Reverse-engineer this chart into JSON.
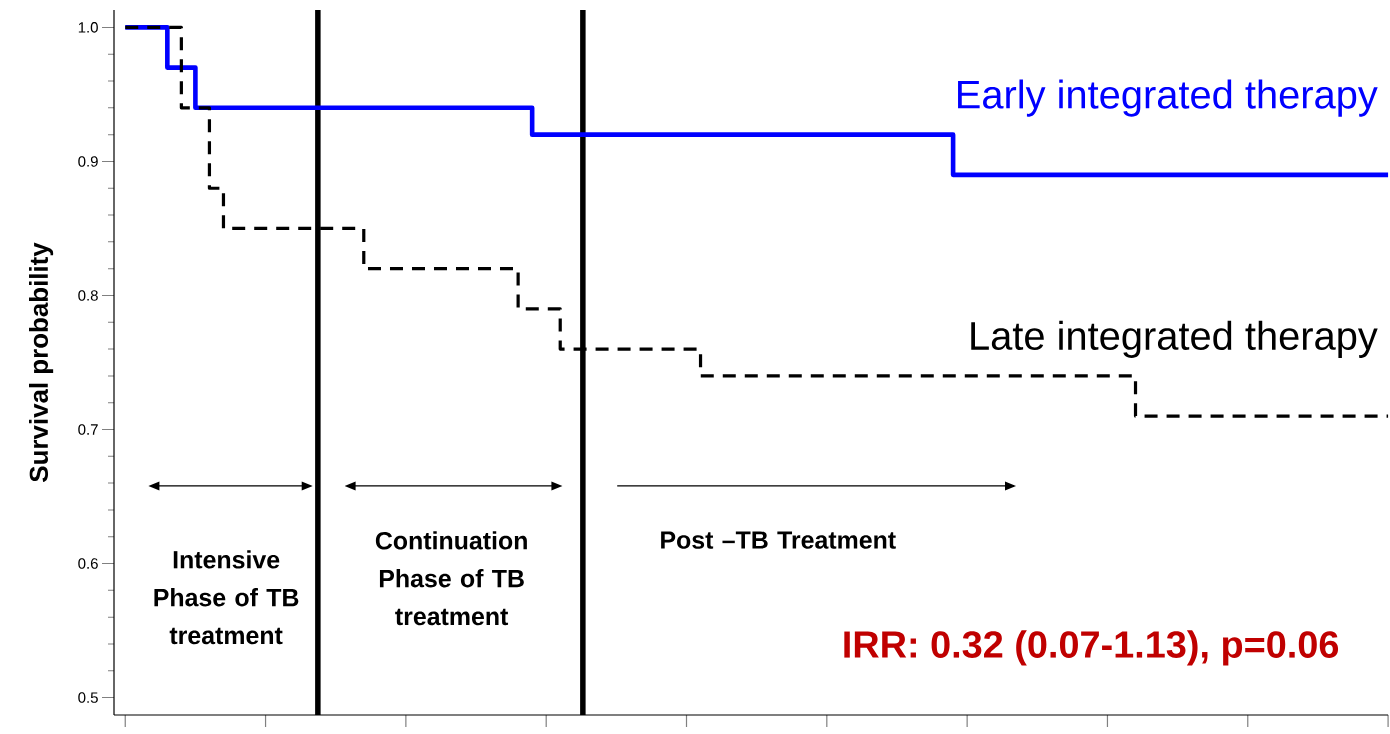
{
  "chart_data": {
    "type": "step",
    "ylabel": "Survival probability",
    "categories": [
      null,
      null,
      null,
      null,
      null,
      null,
      null,
      null,
      null,
      null,
      null,
      null,
      null,
      null,
      null,
      null,
      null,
      null,
      null,
      null,
      null,
      null,
      null,
      null,
      null,
      null,
      null,
      null,
      null,
      null,
      null,
      null,
      null,
      null,
      null,
      null,
      null,
      null,
      null,
      null,
      null,
      null,
      null,
      null,
      null,
      null,
      null,
      null,
      null,
      null,
      null,
      null,
      null,
      null,
      null,
      null,
      null,
      null,
      null,
      null,
      null,
      null,
      null,
      null,
      null,
      null,
      null,
      null,
      null,
      null,
      null,
      null,
      null,
      null,
      null,
      null,
      null,
      null,
      null,
      null,
      null,
      null,
      null,
      null,
      null,
      null,
      null,
      null,
      null,
      null,
      null
    ],
    "ylim": [
      0.487,
      1.013
    ],
    "yticks": [
      {
        "value": 0.5,
        "label": "0.5"
      },
      {
        "value": 0.6,
        "label": "0.6"
      },
      {
        "value": 0.7,
        "label": "0.7"
      },
      {
        "value": 0.8,
        "label": "0.8"
      },
      {
        "value": 0.9,
        "label": "0.9"
      },
      {
        "value": 1.0,
        "label": "1.0"
      }
    ],
    "tick_labels": "y",
    "series": [
      {
        "name": "Early integrated therapy",
        "color": "#0000ff",
        "line_style": "solid",
        "values": [
          1.0,
          1.0,
          1.0,
          0.97,
          0.97,
          0.94,
          0.94,
          0.94,
          0.94,
          0.94,
          0.94,
          0.94,
          0.94,
          0.94,
          0.94,
          0.94,
          0.94,
          0.94,
          0.94,
          0.94,
          0.94,
          0.94,
          0.94,
          0.94,
          0.94,
          0.94,
          0.94,
          0.94,
          0.94,
          0.92,
          0.92,
          0.92,
          0.92,
          0.92,
          0.92,
          0.92,
          0.92,
          0.92,
          0.92,
          0.92,
          0.92,
          0.92,
          0.92,
          0.92,
          0.92,
          0.92,
          0.92,
          0.92,
          0.92,
          0.92,
          0.92,
          0.92,
          0.92,
          0.92,
          0.92,
          0.92,
          0.92,
          0.92,
          0.92,
          0.89,
          0.89,
          0.89,
          0.89,
          0.89,
          0.89,
          0.89,
          0.89,
          0.89,
          0.89,
          0.89,
          0.89,
          0.89,
          0.89,
          0.89,
          0.89,
          0.89,
          0.89,
          0.89,
          0.89,
          0.89,
          0.89,
          0.89,
          0.89,
          0.89,
          0.89,
          0.89,
          0.89,
          0.89,
          0.89,
          0.89,
          0.89
        ]
      },
      {
        "name": "Late integrated therapy",
        "color": "#000000",
        "line_style": "dashed",
        "values": [
          1.0,
          1.0,
          1.0,
          1.0,
          0.94,
          0.94,
          0.88,
          0.85,
          0.85,
          0.85,
          0.85,
          0.85,
          0.85,
          0.85,
          0.85,
          0.85,
          0.85,
          0.82,
          0.82,
          0.82,
          0.82,
          0.82,
          0.82,
          0.82,
          0.82,
          0.82,
          0.82,
          0.82,
          0.79,
          0.79,
          0.79,
          0.76,
          0.76,
          0.76,
          0.76,
          0.76,
          0.76,
          0.76,
          0.76,
          0.76,
          0.76,
          0.74,
          0.74,
          0.74,
          0.74,
          0.74,
          0.74,
          0.74,
          0.74,
          0.74,
          0.74,
          0.74,
          0.74,
          0.74,
          0.74,
          0.74,
          0.74,
          0.74,
          0.74,
          0.74,
          0.74,
          0.74,
          0.74,
          0.74,
          0.74,
          0.74,
          0.74,
          0.74,
          0.74,
          0.74,
          0.74,
          0.74,
          0.71,
          0.71,
          0.71,
          0.71,
          0.71,
          0.71,
          0.71,
          0.71,
          0.71,
          0.71,
          0.71,
          0.71,
          0.71,
          0.71,
          0.71,
          0.71,
          0.71,
          0.71,
          0.71
        ]
      }
    ],
    "annotations": [
      "Intensive Phase of TB treatment",
      "Continuation Phase of TB treatment",
      "Post –TB Treatment",
      "IRR: 0.32 (0.07-1.13), p=0.06"
    ]
  }
}
